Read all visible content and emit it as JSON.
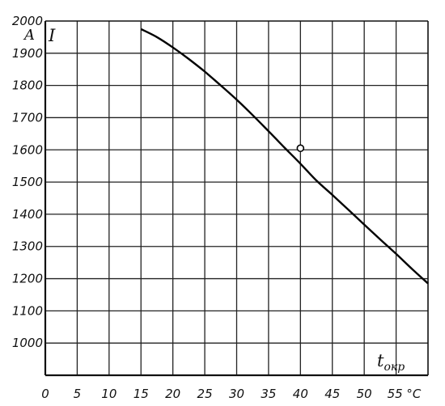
{
  "chart_data": {
    "type": "line",
    "xlabel": "t",
    "xlabel_sub": "окр",
    "ylabel": "I",
    "yunit": "A",
    "xunit_tick": "55 °C",
    "xlim": [
      0,
      60
    ],
    "ylim": [
      900,
      2000
    ],
    "x_ticks": [
      0,
      5,
      10,
      15,
      20,
      25,
      30,
      35,
      40,
      45,
      50,
      55
    ],
    "x_tick_labels": [
      "0",
      "5",
      "10",
      "15",
      "20",
      "25",
      "30",
      "35",
      "40",
      "45",
      "50",
      "55 °C"
    ],
    "y_ticks": [
      1000,
      1100,
      1200,
      1300,
      1400,
      1500,
      1600,
      1700,
      1800,
      1900,
      2000
    ],
    "y_tick_labels": [
      "1000",
      "1100",
      "1200",
      "1300",
      "1400",
      "1500",
      "1600",
      "1700",
      "1800",
      "1900",
      "2000"
    ],
    "grid": true,
    "series": [
      {
        "x": [
          15,
          17.5,
          20,
          22.5,
          25,
          27.5,
          30,
          32.5,
          35,
          37.5,
          40,
          42.5,
          45,
          47.5,
          50,
          52.5,
          55,
          57.5,
          60
        ],
        "y": [
          1975,
          1950,
          1918,
          1882,
          1843,
          1800,
          1756,
          1708,
          1658,
          1607,
          1557,
          1505,
          1460,
          1414,
          1368,
          1322,
          1277,
          1230,
          1185
        ]
      }
    ],
    "marker_point": {
      "x": 40,
      "y": 1605
    }
  }
}
